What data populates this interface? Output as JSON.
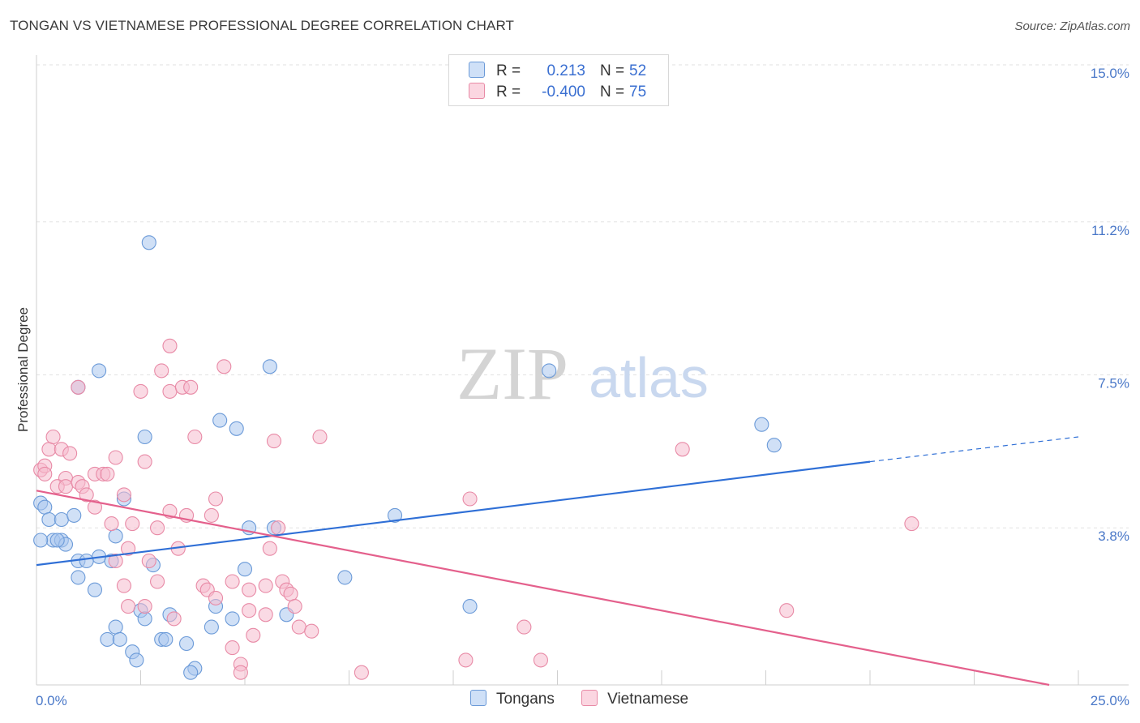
{
  "header": {
    "title": "TONGAN VS VIETNAMESE PROFESSIONAL DEGREE CORRELATION CHART",
    "source": "Source: ZipAtlas.com"
  },
  "watermark": {
    "zip": "ZIP",
    "atlas": "atlas"
  },
  "legend": {
    "rows": [
      {
        "r_label": "R =",
        "r_value": "0.213",
        "n_label": "N =",
        "n_value": "52",
        "color": "#a9c6ee",
        "stroke": "#6b9ad8"
      },
      {
        "r_label": "R =",
        "r_value": "-0.400",
        "n_label": "N =",
        "n_value": "75",
        "color": "#f6bccd",
        "stroke": "#e88aa6"
      }
    ]
  },
  "chart_data": {
    "type": "scatter",
    "title": "TONGAN VS VIETNAMESE PROFESSIONAL DEGREE CORRELATION CHART",
    "xlabel": "",
    "ylabel": "Professional Degree",
    "xlim": [
      0,
      25
    ],
    "ylim": [
      0,
      15
    ],
    "x_ticks": [
      "0.0%",
      "25.0%"
    ],
    "y_ticks": [
      {
        "value": 3.8,
        "label": "3.8%"
      },
      {
        "value": 7.5,
        "label": "7.5%"
      },
      {
        "value": 11.2,
        "label": "11.2%"
      },
      {
        "value": 15.0,
        "label": "15.0%"
      }
    ],
    "series": [
      {
        "name": "Tongans",
        "color": "#a9c6ee",
        "stroke": "#6b9ad8",
        "trend": {
          "x0": 0,
          "y0": 2.9,
          "x1": 20,
          "y1": 5.4,
          "dash_x1": 25,
          "dash_y1": 6.0,
          "color": "#2f6fd6"
        },
        "points": [
          [
            0.1,
            4.4
          ],
          [
            0.2,
            4.3
          ],
          [
            0.3,
            4.0
          ],
          [
            0.6,
            4.0
          ],
          [
            0.9,
            4.1
          ],
          [
            0.4,
            3.5
          ],
          [
            0.6,
            3.5
          ],
          [
            0.1,
            3.5
          ],
          [
            0.7,
            3.4
          ],
          [
            0.5,
            3.5
          ],
          [
            1.0,
            3.0
          ],
          [
            1.5,
            3.1
          ],
          [
            1.2,
            3.0
          ],
          [
            1.8,
            3.0
          ],
          [
            1.9,
            3.6
          ],
          [
            2.1,
            4.5
          ],
          [
            1.0,
            2.6
          ],
          [
            1.4,
            2.3
          ],
          [
            1.5,
            7.6
          ],
          [
            1.0,
            7.2
          ],
          [
            2.6,
            6.0
          ],
          [
            2.7,
            10.7
          ],
          [
            3.2,
            1.7
          ],
          [
            2.5,
            1.8
          ],
          [
            2.6,
            1.6
          ],
          [
            3.0,
            1.1
          ],
          [
            3.1,
            1.1
          ],
          [
            1.7,
            1.1
          ],
          [
            1.9,
            1.4
          ],
          [
            2.0,
            1.1
          ],
          [
            2.3,
            0.8
          ],
          [
            2.4,
            0.6
          ],
          [
            3.6,
            1.0
          ],
          [
            3.8,
            0.4
          ],
          [
            3.7,
            0.3
          ],
          [
            4.2,
            1.4
          ],
          [
            4.3,
            1.9
          ],
          [
            4.7,
            1.6
          ],
          [
            4.4,
            6.4
          ],
          [
            4.8,
            6.2
          ],
          [
            5.0,
            2.8
          ],
          [
            5.7,
            3.8
          ],
          [
            5.6,
            7.7
          ],
          [
            6.0,
            1.7
          ],
          [
            7.4,
            2.6
          ],
          [
            8.6,
            4.1
          ],
          [
            10.4,
            1.9
          ],
          [
            12.3,
            7.6
          ],
          [
            17.4,
            6.3
          ],
          [
            17.7,
            5.8
          ],
          [
            5.1,
            3.8
          ],
          [
            2.8,
            2.9
          ]
        ]
      },
      {
        "name": "Vietnamese",
        "color": "#f6bccd",
        "stroke": "#e88aa6",
        "trend": {
          "x0": 0,
          "y0": 4.7,
          "x1": 24.3,
          "y1": 0.0,
          "color": "#e4608c"
        },
        "points": [
          [
            0.1,
            5.2
          ],
          [
            0.2,
            5.3
          ],
          [
            0.3,
            5.7
          ],
          [
            0.4,
            6.0
          ],
          [
            0.2,
            5.1
          ],
          [
            0.6,
            5.7
          ],
          [
            0.7,
            5.0
          ],
          [
            0.8,
            5.6
          ],
          [
            0.5,
            4.8
          ],
          [
            0.7,
            4.8
          ],
          [
            1.0,
            4.9
          ],
          [
            1.1,
            4.8
          ],
          [
            1.2,
            4.6
          ],
          [
            1.4,
            5.1
          ],
          [
            1.6,
            5.1
          ],
          [
            1.7,
            5.1
          ],
          [
            1.9,
            5.5
          ],
          [
            2.1,
            4.6
          ],
          [
            1.4,
            4.3
          ],
          [
            1.0,
            7.2
          ],
          [
            2.5,
            7.1
          ],
          [
            3.0,
            7.6
          ],
          [
            3.2,
            7.1
          ],
          [
            3.5,
            7.2
          ],
          [
            3.7,
            7.2
          ],
          [
            3.2,
            8.2
          ],
          [
            4.5,
            7.7
          ],
          [
            3.8,
            6.0
          ],
          [
            5.7,
            5.9
          ],
          [
            2.6,
            5.4
          ],
          [
            3.2,
            4.2
          ],
          [
            3.6,
            4.1
          ],
          [
            4.2,
            4.1
          ],
          [
            4.3,
            4.5
          ],
          [
            1.8,
            3.9
          ],
          [
            2.3,
            3.9
          ],
          [
            2.9,
            3.8
          ],
          [
            3.4,
            3.3
          ],
          [
            2.2,
            3.3
          ],
          [
            1.9,
            3.0
          ],
          [
            2.7,
            3.0
          ],
          [
            2.9,
            2.5
          ],
          [
            2.1,
            2.4
          ],
          [
            2.2,
            1.9
          ],
          [
            2.6,
            1.9
          ],
          [
            3.3,
            1.6
          ],
          [
            4.0,
            2.4
          ],
          [
            4.1,
            2.3
          ],
          [
            4.3,
            2.1
          ],
          [
            4.7,
            2.5
          ],
          [
            5.1,
            2.3
          ],
          [
            5.5,
            2.4
          ],
          [
            5.9,
            2.5
          ],
          [
            6.0,
            2.3
          ],
          [
            6.1,
            2.2
          ],
          [
            6.2,
            1.9
          ],
          [
            5.1,
            1.8
          ],
          [
            5.5,
            1.7
          ],
          [
            5.6,
            3.3
          ],
          [
            5.8,
            3.8
          ],
          [
            6.3,
            1.4
          ],
          [
            6.6,
            1.3
          ],
          [
            5.2,
            1.2
          ],
          [
            4.7,
            0.9
          ],
          [
            4.9,
            0.5
          ],
          [
            4.9,
            0.3
          ],
          [
            7.8,
            0.3
          ],
          [
            10.3,
            0.6
          ],
          [
            11.7,
            1.4
          ],
          [
            12.1,
            0.6
          ],
          [
            10.4,
            4.5
          ],
          [
            6.8,
            6.0
          ],
          [
            15.5,
            5.7
          ],
          [
            21.0,
            3.9
          ],
          [
            18.0,
            1.8
          ]
        ]
      }
    ],
    "bottom_legend": [
      "Tongans",
      "Vietnamese"
    ]
  }
}
